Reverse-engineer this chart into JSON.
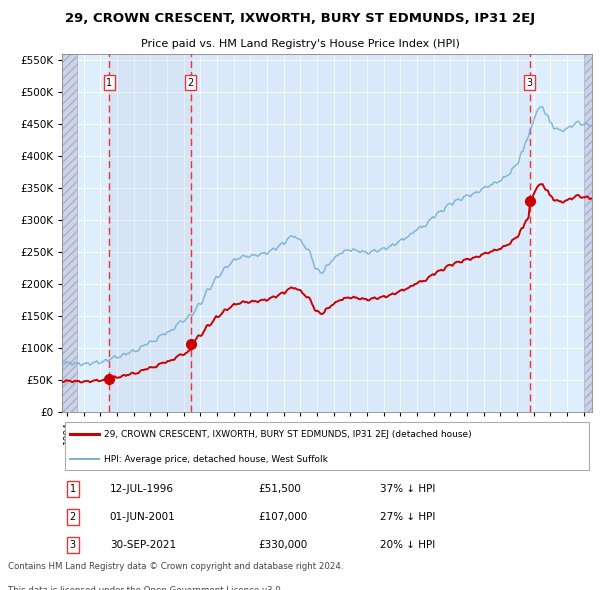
{
  "title": "29, CROWN CRESCENT, IXWORTH, BURY ST EDMUNDS, IP31 2EJ",
  "subtitle": "Price paid vs. HM Land Registry's House Price Index (HPI)",
  "transactions": [
    {
      "date_f": 1996.542,
      "price": 51500,
      "label": "1",
      "pct_below": 37,
      "date_str": "12-JUL-1996",
      "price_str": "£51,500"
    },
    {
      "date_f": 2001.417,
      "price": 107000,
      "label": "2",
      "pct_below": 27,
      "date_str": "01-JUN-2001",
      "price_str": "£107,000"
    },
    {
      "date_f": 2021.75,
      "price": 330000,
      "label": "3",
      "pct_below": 20,
      "date_str": "30-SEP-2021",
      "price_str": "£330,000"
    }
  ],
  "legend_property": "29, CROWN CRESCENT, IXWORTH, BURY ST EDMUNDS, IP31 2EJ (detached house)",
  "legend_hpi": "HPI: Average price, detached house, West Suffolk",
  "footnote_line1": "Contains HM Land Registry data © Crown copyright and database right 2024.",
  "footnote_line2": "This data is licensed under the Open Government Licence v3.0.",
  "property_color": "#cc0000",
  "hpi_color": "#7ab0d4",
  "vline_color": "#ee3333",
  "plot_bg_color": "#ddeeff",
  "hatch_bg_color": "#ccd4e8",
  "grid_color": "#ffffff",
  "ylim": [
    0,
    560000
  ],
  "yticks": [
    0,
    50000,
    100000,
    150000,
    200000,
    250000,
    300000,
    350000,
    400000,
    450000,
    500000,
    550000
  ],
  "xstart": 1993.7,
  "xend": 2025.5,
  "hpi_anchors": {
    "1993.7": 76000,
    "1994.0": 76500,
    "1995.0": 75000,
    "1996.0": 78000,
    "1997.0": 86000,
    "1998.0": 95000,
    "1999.0": 109000,
    "2000.0": 124000,
    "2001.0": 143000,
    "2001.5": 153000,
    "2002.0": 170000,
    "2002.5": 192000,
    "2003.0": 210000,
    "2003.5": 225000,
    "2004.0": 237000,
    "2004.5": 243000,
    "2005.0": 244000,
    "2005.5": 246000,
    "2006.0": 249000,
    "2006.5": 256000,
    "2007.0": 264000,
    "2007.3": 272000,
    "2007.6": 276000,
    "2008.0": 268000,
    "2008.5": 252000,
    "2009.0": 222000,
    "2009.3": 218000,
    "2009.6": 228000,
    "2010.0": 240000,
    "2010.5": 250000,
    "2011.0": 254000,
    "2011.5": 252000,
    "2012.0": 249000,
    "2012.5": 252000,
    "2013.0": 255000,
    "2013.5": 260000,
    "2014.0": 268000,
    "2014.5": 275000,
    "2015.0": 286000,
    "2015.5": 292000,
    "2016.0": 306000,
    "2016.5": 315000,
    "2017.0": 326000,
    "2017.5": 332000,
    "2018.0": 338000,
    "2018.5": 342000,
    "2019.0": 350000,
    "2019.5": 356000,
    "2020.0": 362000,
    "2020.5": 372000,
    "2021.0": 388000,
    "2021.3": 405000,
    "2021.6": 428000,
    "2021.9": 445000,
    "2022.0": 458000,
    "2022.2": 472000,
    "2022.5": 477000,
    "2022.8": 465000,
    "2023.0": 452000,
    "2023.3": 444000,
    "2023.6": 440000,
    "2024.0": 443000,
    "2024.3": 448000,
    "2024.6": 453000,
    "2025.0": 450000,
    "2025.5": 448000
  }
}
